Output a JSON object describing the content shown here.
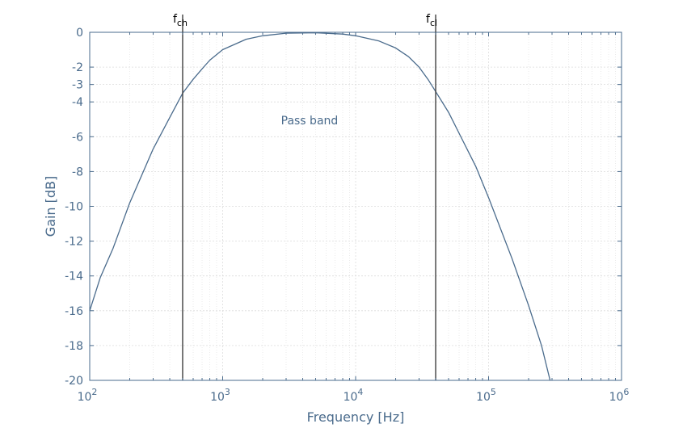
{
  "chart_data": {
    "type": "line",
    "title": "",
    "xlabel": "Frequency [Hz]",
    "ylabel": "Gain [dB]",
    "xscale": "log",
    "xlim": [
      100,
      1000000
    ],
    "ylim": [
      -20,
      0
    ],
    "x_ticks": [
      {
        "value": 100,
        "base": "10",
        "exp": "2"
      },
      {
        "value": 1000,
        "base": "10",
        "exp": "3"
      },
      {
        "value": 10000,
        "base": "10",
        "exp": "4"
      },
      {
        "value": 100000,
        "base": "10",
        "exp": "5"
      },
      {
        "value": 1000000,
        "base": "10",
        "exp": "6"
      }
    ],
    "y_ticks": [
      0,
      -2,
      -3,
      -4,
      -6,
      -8,
      -10,
      -12,
      -14,
      -16,
      -18,
      -20
    ],
    "grid": true,
    "minor_grid": true,
    "colors": {
      "series": "#4a6b8c",
      "axis": "#4a6b8c",
      "markers": "#404040"
    },
    "series": [
      {
        "x": [
          100,
          120,
          150,
          200,
          300,
          400,
          500,
          600,
          700,
          800,
          1000,
          1500,
          2000,
          3000,
          5000,
          8000,
          10000,
          15000,
          20000,
          25000,
          30000,
          35000,
          40000,
          50000,
          60000,
          80000,
          100000,
          150000,
          200000,
          250000,
          290000
        ],
        "y": [
          -16.0,
          -14.1,
          -12.4,
          -9.8,
          -6.7,
          -4.9,
          -3.5,
          -2.7,
          -2.1,
          -1.6,
          -1.0,
          -0.4,
          -0.2,
          -0.05,
          -0.03,
          -0.1,
          -0.2,
          -0.5,
          -0.9,
          -1.4,
          -2.0,
          -2.7,
          -3.4,
          -4.6,
          -5.8,
          -7.7,
          -9.5,
          -13.0,
          -15.7,
          -18.0,
          -20.0
        ]
      }
    ],
    "markers": [
      {
        "label_main": "f",
        "label_sub": "ch",
        "x": 500
      },
      {
        "label_main": "f",
        "label_sub": "cl",
        "x": 40000
      }
    ],
    "annotations": [
      {
        "text": "Pass band",
        "x": 4500,
        "y": -5.3
      }
    ]
  }
}
